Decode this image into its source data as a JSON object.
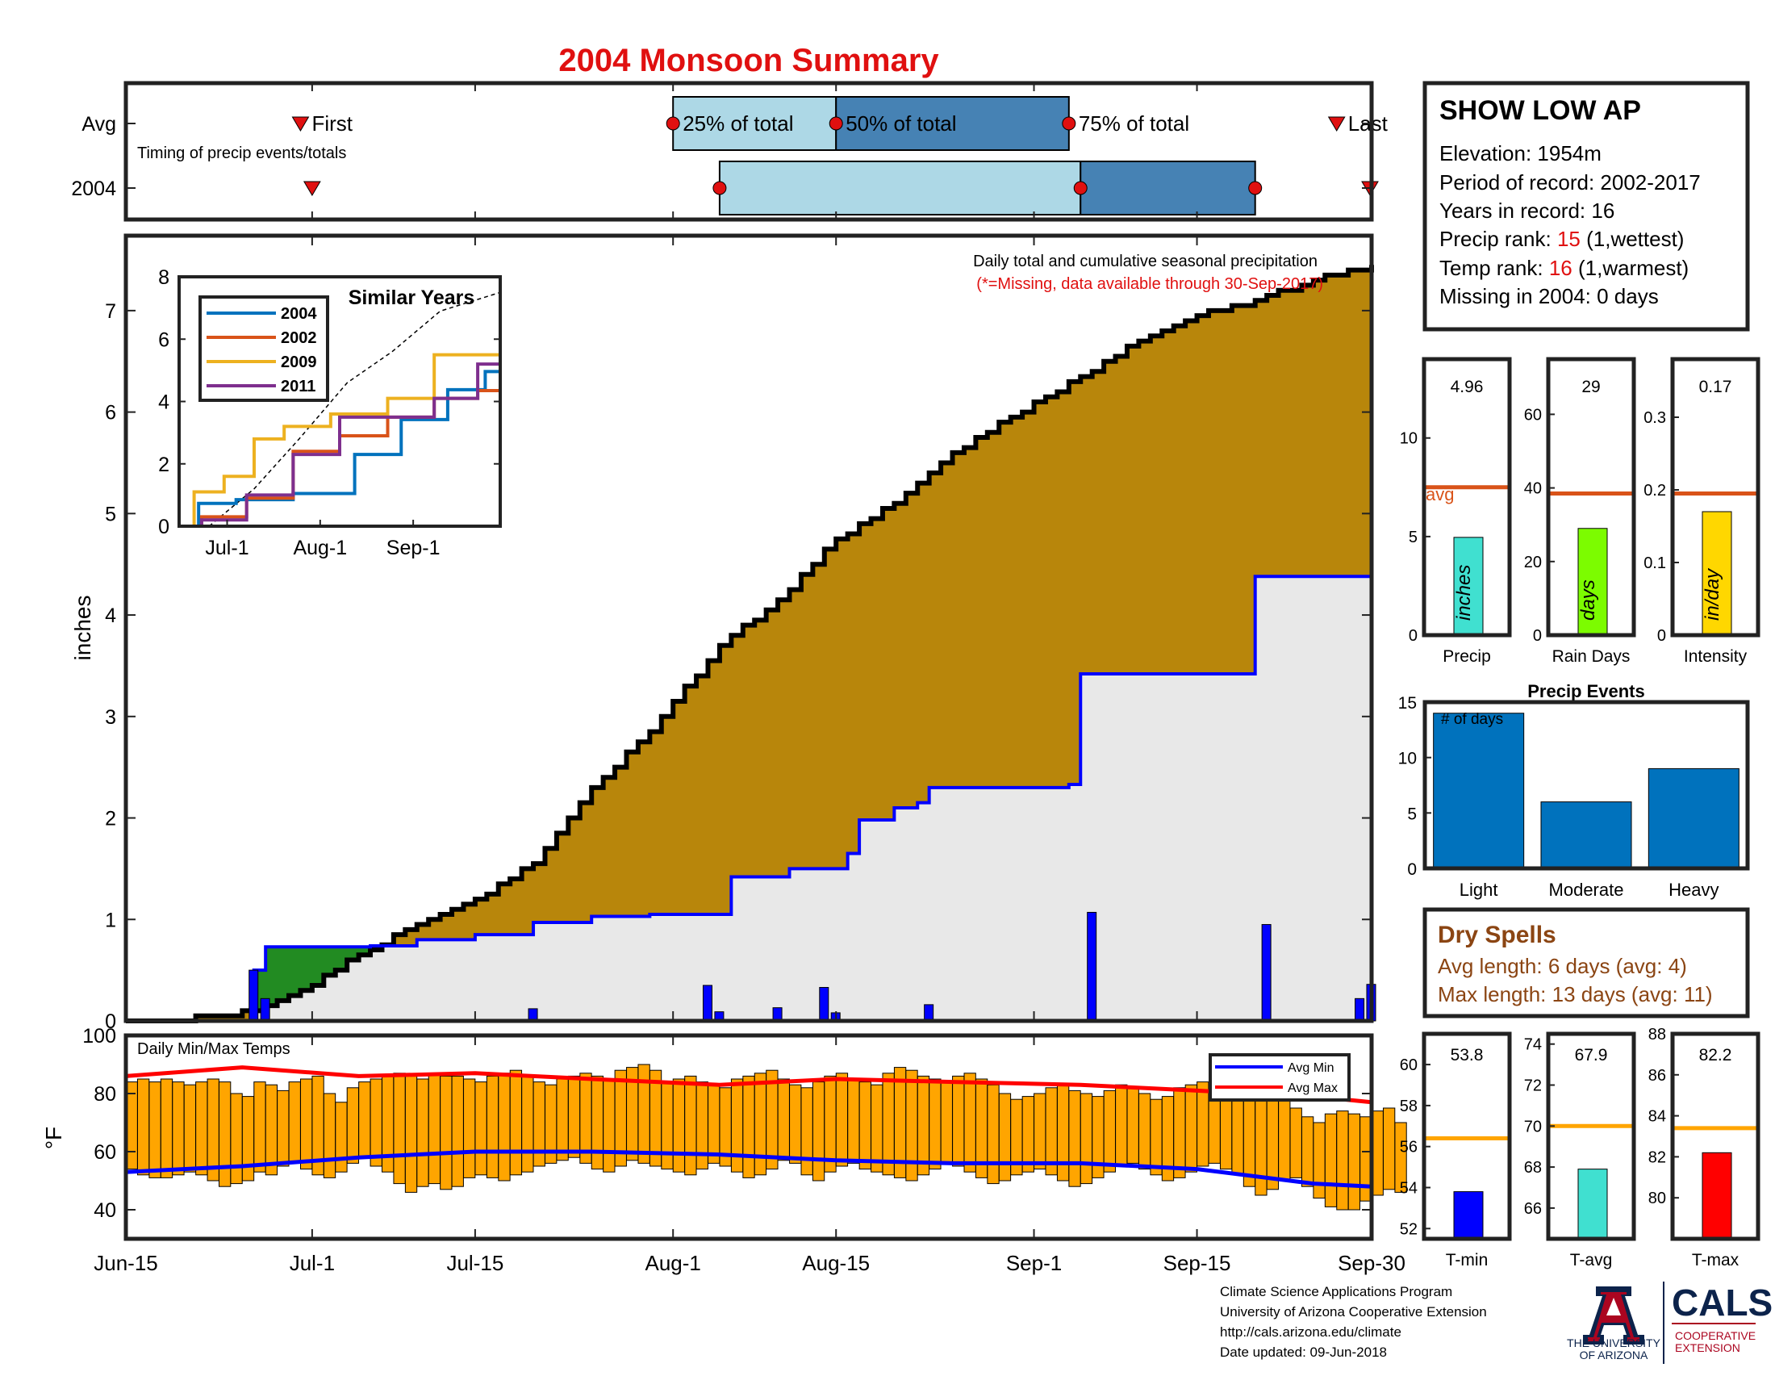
{
  "title": "2004 Monsoon Summary",
  "timing": {
    "label": "Timing of precip events/totals",
    "row_labels": [
      "Avg",
      "2004"
    ],
    "labels": {
      "first": "First",
      "p25": "25% of total",
      "p50": "50% of total",
      "p75": "75% of total",
      "last": "Last"
    },
    "avg": {
      "first": "2004-06-30",
      "p25": "2004-08-01",
      "p50": "2004-08-15",
      "p75": "2004-09-04",
      "last": "2004-09-27"
    },
    "year": {
      "first": "2004-07-01",
      "p25": "2004-08-05",
      "p50": "2004-09-05",
      "p75": "2004-09-20",
      "last": "2004-09-30"
    }
  },
  "station": {
    "name": "SHOW LOW AP",
    "elevation_label": "Elevation: 1954m",
    "period_label": "Period of record: 2002-2017",
    "years_label": "Years in record: 16",
    "precip_rank_prefix": "Precip rank: ",
    "precip_rank": "15",
    "precip_rank_suffix": " (1,wettest)",
    "temp_rank_prefix": "Temp rank: ",
    "temp_rank": "16",
    "temp_rank_suffix": " (1,warmest)",
    "missing_label": "Missing in 2004: 0 days"
  },
  "main_panel": {
    "note": "Daily total and cumulative seasonal precipitation",
    "missing_note": "(*=Missing, data available through 30-Sep-2017)",
    "ylabel": "inches",
    "ylim": [
      0,
      7.5
    ],
    "yticks": [
      0,
      1,
      2,
      3,
      4,
      5,
      6,
      7
    ],
    "date_ticks": [
      {
        "label": "Jun-15",
        "date": "2004-06-15"
      },
      {
        "label": "Jul-1",
        "date": "2004-07-01"
      },
      {
        "label": "Jul-15",
        "date": "2004-07-15"
      },
      {
        "label": "Aug-1",
        "date": "2004-08-01"
      },
      {
        "label": "Aug-15",
        "date": "2004-08-15"
      },
      {
        "label": "Sep-1",
        "date": "2004-09-01"
      },
      {
        "label": "Sep-15",
        "date": "2004-09-15"
      },
      {
        "label": "Sep-30",
        "date": "2004-09-30"
      }
    ]
  },
  "inset": {
    "title": "Similar Years",
    "ylim": [
      0,
      8
    ],
    "yticks": [
      0,
      2,
      4,
      6,
      8
    ],
    "xticks": [
      {
        "label": "Jul-1",
        "date": "2004-07-01"
      },
      {
        "label": "Aug-1",
        "date": "2004-08-01"
      },
      {
        "label": "Sep-1",
        "date": "2004-09-01"
      }
    ],
    "legend": [
      {
        "name": "2004",
        "color": "#0072BD"
      },
      {
        "name": "2002",
        "color": "#D95319"
      },
      {
        "name": "2009",
        "color": "#EDB120"
      },
      {
        "name": "2011",
        "color": "#7E2F8E"
      }
    ]
  },
  "temps_panel": {
    "title": "Daily Min/Max Temps",
    "ylabel": "°F",
    "ylim": [
      30,
      100
    ],
    "yticks": [
      40,
      60,
      80,
      100
    ],
    "legend": [
      {
        "name": "Avg Min",
        "color": "#0000FF"
      },
      {
        "name": "Avg Max",
        "color": "#FF0000"
      }
    ]
  },
  "stat_panels": [
    {
      "name": "Precip",
      "value_label": "4.96",
      "value": 4.96,
      "unit": "inches",
      "avg": 7.5,
      "ylim": [
        0,
        14
      ],
      "yticks": [
        0,
        5,
        10
      ],
      "color": "#40E0D0",
      "avg_label": "avg"
    },
    {
      "name": "Rain Days",
      "value_label": "29",
      "value": 29,
      "unit": "days",
      "avg": 38.5,
      "ylim": [
        0,
        75
      ],
      "yticks": [
        0,
        20,
        40,
        60
      ],
      "color": "#7CFC00",
      "avg_label": ""
    },
    {
      "name": "Intensity",
      "value_label": "0.17",
      "value": 0.17,
      "unit": "in/day",
      "avg": 0.195,
      "ylim": [
        0,
        0.38
      ],
      "yticks": [
        0,
        0.1,
        0.2,
        0.3
      ],
      "color": "#FFD700",
      "avg_label": ""
    }
  ],
  "precip_events": {
    "title": "Precip Events",
    "ylabel": "# of days",
    "categories": [
      "Light",
      "Moderate",
      "Heavy"
    ],
    "values": [
      14,
      6,
      9
    ],
    "ylim": [
      0,
      15
    ],
    "yticks": [
      0,
      5,
      10,
      15
    ],
    "color": "#0072BD"
  },
  "dry_spells": {
    "title": "Dry Spells",
    "avg_length_label": "Avg length: 6 days (avg: 4)",
    "max_length_label": "Max length: 13 days (avg: 11)"
  },
  "temp_panels": [
    {
      "name": "T-min",
      "value_label": "53.8",
      "value": 53.8,
      "avg": 56.4,
      "ylim": [
        51.5,
        61.5
      ],
      "yticks": [
        52,
        54,
        56,
        58,
        60
      ],
      "color": "#0000FF"
    },
    {
      "name": "T-avg",
      "value_label": "67.9",
      "value": 67.9,
      "avg": 70,
      "ylim": [
        64.5,
        74.5
      ],
      "yticks": [
        66,
        68,
        70,
        72,
        74
      ],
      "color": "#40E0D0"
    },
    {
      "name": "T-max",
      "value_label": "82.2",
      "value": 82.2,
      "avg": 83.4,
      "ylim": [
        78,
        88
      ],
      "yticks": [
        80,
        82,
        84,
        86,
        88
      ],
      "color": "#FF0000"
    }
  ],
  "footer": {
    "lines": [
      "Climate Science Applications Program",
      "University of Arizona Cooperative Extension",
      "http://cals.arizona.edu/climate",
      "Date updated: 09-Jun-2018"
    ],
    "logo_ua_line1": "THE UNIVERSITY",
    "logo_ua_line2": "OF ARIZONA",
    "logo_cals": "CALS",
    "logo_cals_line1": "COOPERATIVE",
    "logo_cals_line2": "EXTENSION"
  },
  "chart_data": [
    {
      "type": "area",
      "name": "cumulative_precip",
      "x_start": "2004-06-15",
      "x_end": "2004-09-30",
      "ylabel": "inches",
      "ylim": [
        0,
        7.5
      ],
      "series": [
        {
          "name": "",
          "role": "avg_cumulative",
          "color": "#000000",
          "fill": "#B8860B",
          "x": [
            "2004-06-15",
            "2004-06-20",
            "2004-06-25",
            "2004-06-28",
            "2004-07-01",
            "2004-07-05",
            "2004-07-10",
            "2004-07-15",
            "2004-07-20",
            "2004-07-25",
            "2004-07-30",
            "2004-08-05",
            "2004-08-10",
            "2004-08-15",
            "2004-08-20",
            "2004-08-25",
            "2004-08-30",
            "2004-09-05",
            "2004-09-10",
            "2004-09-15",
            "2004-09-20",
            "2004-09-25",
            "2004-09-30"
          ],
          "y": [
            0,
            0.02,
            0.08,
            0.2,
            0.35,
            0.65,
            0.95,
            1.2,
            1.55,
            2.3,
            2.85,
            3.7,
            4.15,
            4.75,
            5.1,
            5.6,
            5.95,
            6.35,
            6.7,
            6.95,
            7.1,
            7.3,
            7.45
          ]
        },
        {
          "name": "",
          "role": "year_cumulative",
          "color": "#0000FF",
          "fill": "#E8E8E8",
          "x": [
            "2004-06-15",
            "2004-06-25",
            "2004-06-26",
            "2004-06-27",
            "2004-07-05",
            "2004-07-06",
            "2004-07-10",
            "2004-07-15",
            "2004-07-20",
            "2004-07-25",
            "2004-07-30",
            "2004-08-05",
            "2004-08-06",
            "2004-08-11",
            "2004-08-16",
            "2004-08-17",
            "2004-08-20",
            "2004-08-22",
            "2004-08-23",
            "2004-09-04",
            "2004-09-05",
            "2004-09-19",
            "2004-09-20",
            "2004-09-29",
            "2004-09-30"
          ],
          "y": [
            0,
            0,
            0.5,
            0.73,
            0.73,
            0.74,
            0.8,
            0.85,
            0.97,
            1.03,
            1.05,
            1.05,
            1.42,
            1.5,
            1.65,
            1.98,
            2.1,
            2.15,
            2.3,
            2.33,
            3.42,
            3.42,
            4.38,
            4.38,
            4.96
          ]
        }
      ]
    },
    {
      "type": "bar",
      "name": "daily_precip",
      "ylabel": "inches",
      "x": [
        "2004-06-26",
        "2004-06-27",
        "2004-07-20",
        "2004-08-04",
        "2004-08-05",
        "2004-08-10",
        "2004-08-14",
        "2004-08-15",
        "2004-08-23",
        "2004-09-06",
        "2004-09-21",
        "2004-09-29",
        "2004-09-30"
      ],
      "values": [
        0.5,
        0.22,
        0.12,
        0.35,
        0.09,
        0.13,
        0.33,
        0.08,
        0.16,
        1.07,
        0.95,
        0.22,
        0.36
      ],
      "color": "#0000FF"
    },
    {
      "type": "line",
      "name": "similar_years",
      "title": "Similar Years",
      "ylim": [
        0,
        8
      ],
      "series": [
        {
          "name": "",
          "role": "avg",
          "color": "#000000",
          "dash": true,
          "x": [
            "2004-06-25",
            "2004-07-10",
            "2004-07-25",
            "2004-08-10",
            "2004-08-25",
            "2004-09-10",
            "2004-09-30"
          ],
          "y": [
            0,
            1.2,
            2.8,
            4.6,
            5.6,
            6.9,
            7.5
          ]
        },
        {
          "name": "2004",
          "color": "#0072BD",
          "x": [
            "2004-06-15",
            "2004-06-28",
            "2004-07-10",
            "2004-08-05",
            "2004-08-20",
            "2004-09-05",
            "2004-09-20",
            "2004-09-30"
          ],
          "y": [
            0,
            0.73,
            0.85,
            1.05,
            2.3,
            3.42,
            4.38,
            4.96
          ]
        },
        {
          "name": "2002",
          "color": "#D95319",
          "x": [
            "2004-06-15",
            "2004-06-30",
            "2004-07-15",
            "2004-07-31",
            "2004-08-15",
            "2004-09-01",
            "2004-09-15",
            "2004-09-30"
          ],
          "y": [
            0,
            0.3,
            0.9,
            2.4,
            2.9,
            3.5,
            4.1,
            4.35
          ]
        },
        {
          "name": "2009",
          "color": "#EDB120",
          "x": [
            "2004-06-15",
            "2004-06-25",
            "2004-07-05",
            "2004-07-15",
            "2004-07-25",
            "2004-08-15",
            "2004-09-01",
            "2004-09-15",
            "2004-09-30"
          ],
          "y": [
            0,
            1.1,
            1.6,
            2.8,
            3.2,
            3.6,
            4.1,
            5.5,
            5.5
          ]
        },
        {
          "name": "2011",
          "color": "#7E2F8E",
          "x": [
            "2004-06-15",
            "2004-06-30",
            "2004-07-15",
            "2004-07-31",
            "2004-08-15",
            "2004-09-01",
            "2004-09-15",
            "2004-09-30"
          ],
          "y": [
            0,
            0.2,
            1.0,
            2.3,
            3.5,
            3.5,
            4.1,
            5.2
          ]
        }
      ]
    },
    {
      "type": "bar",
      "name": "daily_temps",
      "title": "Daily Min/Max Temps",
      "ylim": [
        30,
        100
      ],
      "note": "floating bars from daily min to daily max, 2004-06-15 to 2004-09-30",
      "x_start": "2004-06-15",
      "x_end": "2004-09-30",
      "daily_min": [
        54,
        52,
        51,
        51,
        52,
        53,
        52,
        50,
        48,
        49,
        50,
        53,
        52,
        55,
        56,
        54,
        52,
        51,
        53,
        56,
        58,
        55,
        53,
        49,
        46,
        48,
        49,
        47,
        48,
        51,
        52,
        51,
        50,
        52,
        53,
        55,
        56,
        57,
        58,
        56,
        54,
        53,
        55,
        57,
        56,
        55,
        54,
        53,
        52,
        54,
        56,
        55,
        53,
        51,
        52,
        54,
        57,
        56,
        52,
        50,
        53,
        55,
        56,
        54,
        53,
        52,
        51,
        50,
        52,
        54,
        56,
        55,
        53,
        51,
        49,
        50,
        52,
        53,
        54,
        52,
        50,
        48,
        49,
        51,
        53,
        55,
        56,
        54,
        52,
        50,
        51,
        53,
        55,
        56,
        54,
        52,
        48,
        45,
        47,
        50,
        51,
        48,
        44,
        41,
        40,
        40,
        43,
        45,
        47,
        46
      ],
      "daily_max": [
        84,
        85,
        84,
        85,
        84,
        83,
        84,
        85,
        84,
        80,
        79,
        84,
        83,
        81,
        84,
        85,
        86,
        80,
        77,
        82,
        84,
        85,
        86,
        87,
        86,
        85,
        87,
        86,
        86,
        85,
        84,
        86,
        87,
        88,
        86,
        84,
        83,
        85,
        86,
        87,
        86,
        85,
        88,
        89,
        90,
        88,
        84,
        85,
        86,
        84,
        83,
        82,
        85,
        86,
        87,
        88,
        85,
        83,
        82,
        84,
        86,
        87,
        85,
        84,
        83,
        87,
        89,
        88,
        86,
        85,
        84,
        86,
        87,
        85,
        83,
        80,
        78,
        79,
        80,
        82,
        83,
        81,
        80,
        79,
        81,
        83,
        82,
        80,
        78,
        79,
        82,
        83,
        84,
        81,
        80,
        82,
        84,
        83,
        81,
        80,
        75,
        72,
        70,
        73,
        74,
        73,
        72,
        74,
        75,
        70
      ],
      "series": [
        {
          "name": "Avg Min",
          "color": "#0000FF",
          "x": [
            "2004-06-15",
            "2004-06-25",
            "2004-07-05",
            "2004-07-15",
            "2004-07-25",
            "2004-08-05",
            "2004-08-15",
            "2004-08-25",
            "2004-09-05",
            "2004-09-15",
            "2004-09-25",
            "2004-09-30"
          ],
          "y": [
            53,
            55,
            58,
            60,
            60,
            59,
            57,
            56,
            56,
            54,
            49,
            48
          ]
        },
        {
          "name": "Avg Max",
          "color": "#FF0000",
          "x": [
            "2004-06-15",
            "2004-06-25",
            "2004-07-05",
            "2004-07-15",
            "2004-07-25",
            "2004-08-05",
            "2004-08-15",
            "2004-08-25",
            "2004-09-05",
            "2004-09-15",
            "2004-09-25",
            "2004-09-30"
          ],
          "y": [
            86,
            89,
            86,
            87,
            85,
            83,
            85,
            84,
            83,
            81,
            79,
            77
          ]
        }
      ]
    }
  ]
}
